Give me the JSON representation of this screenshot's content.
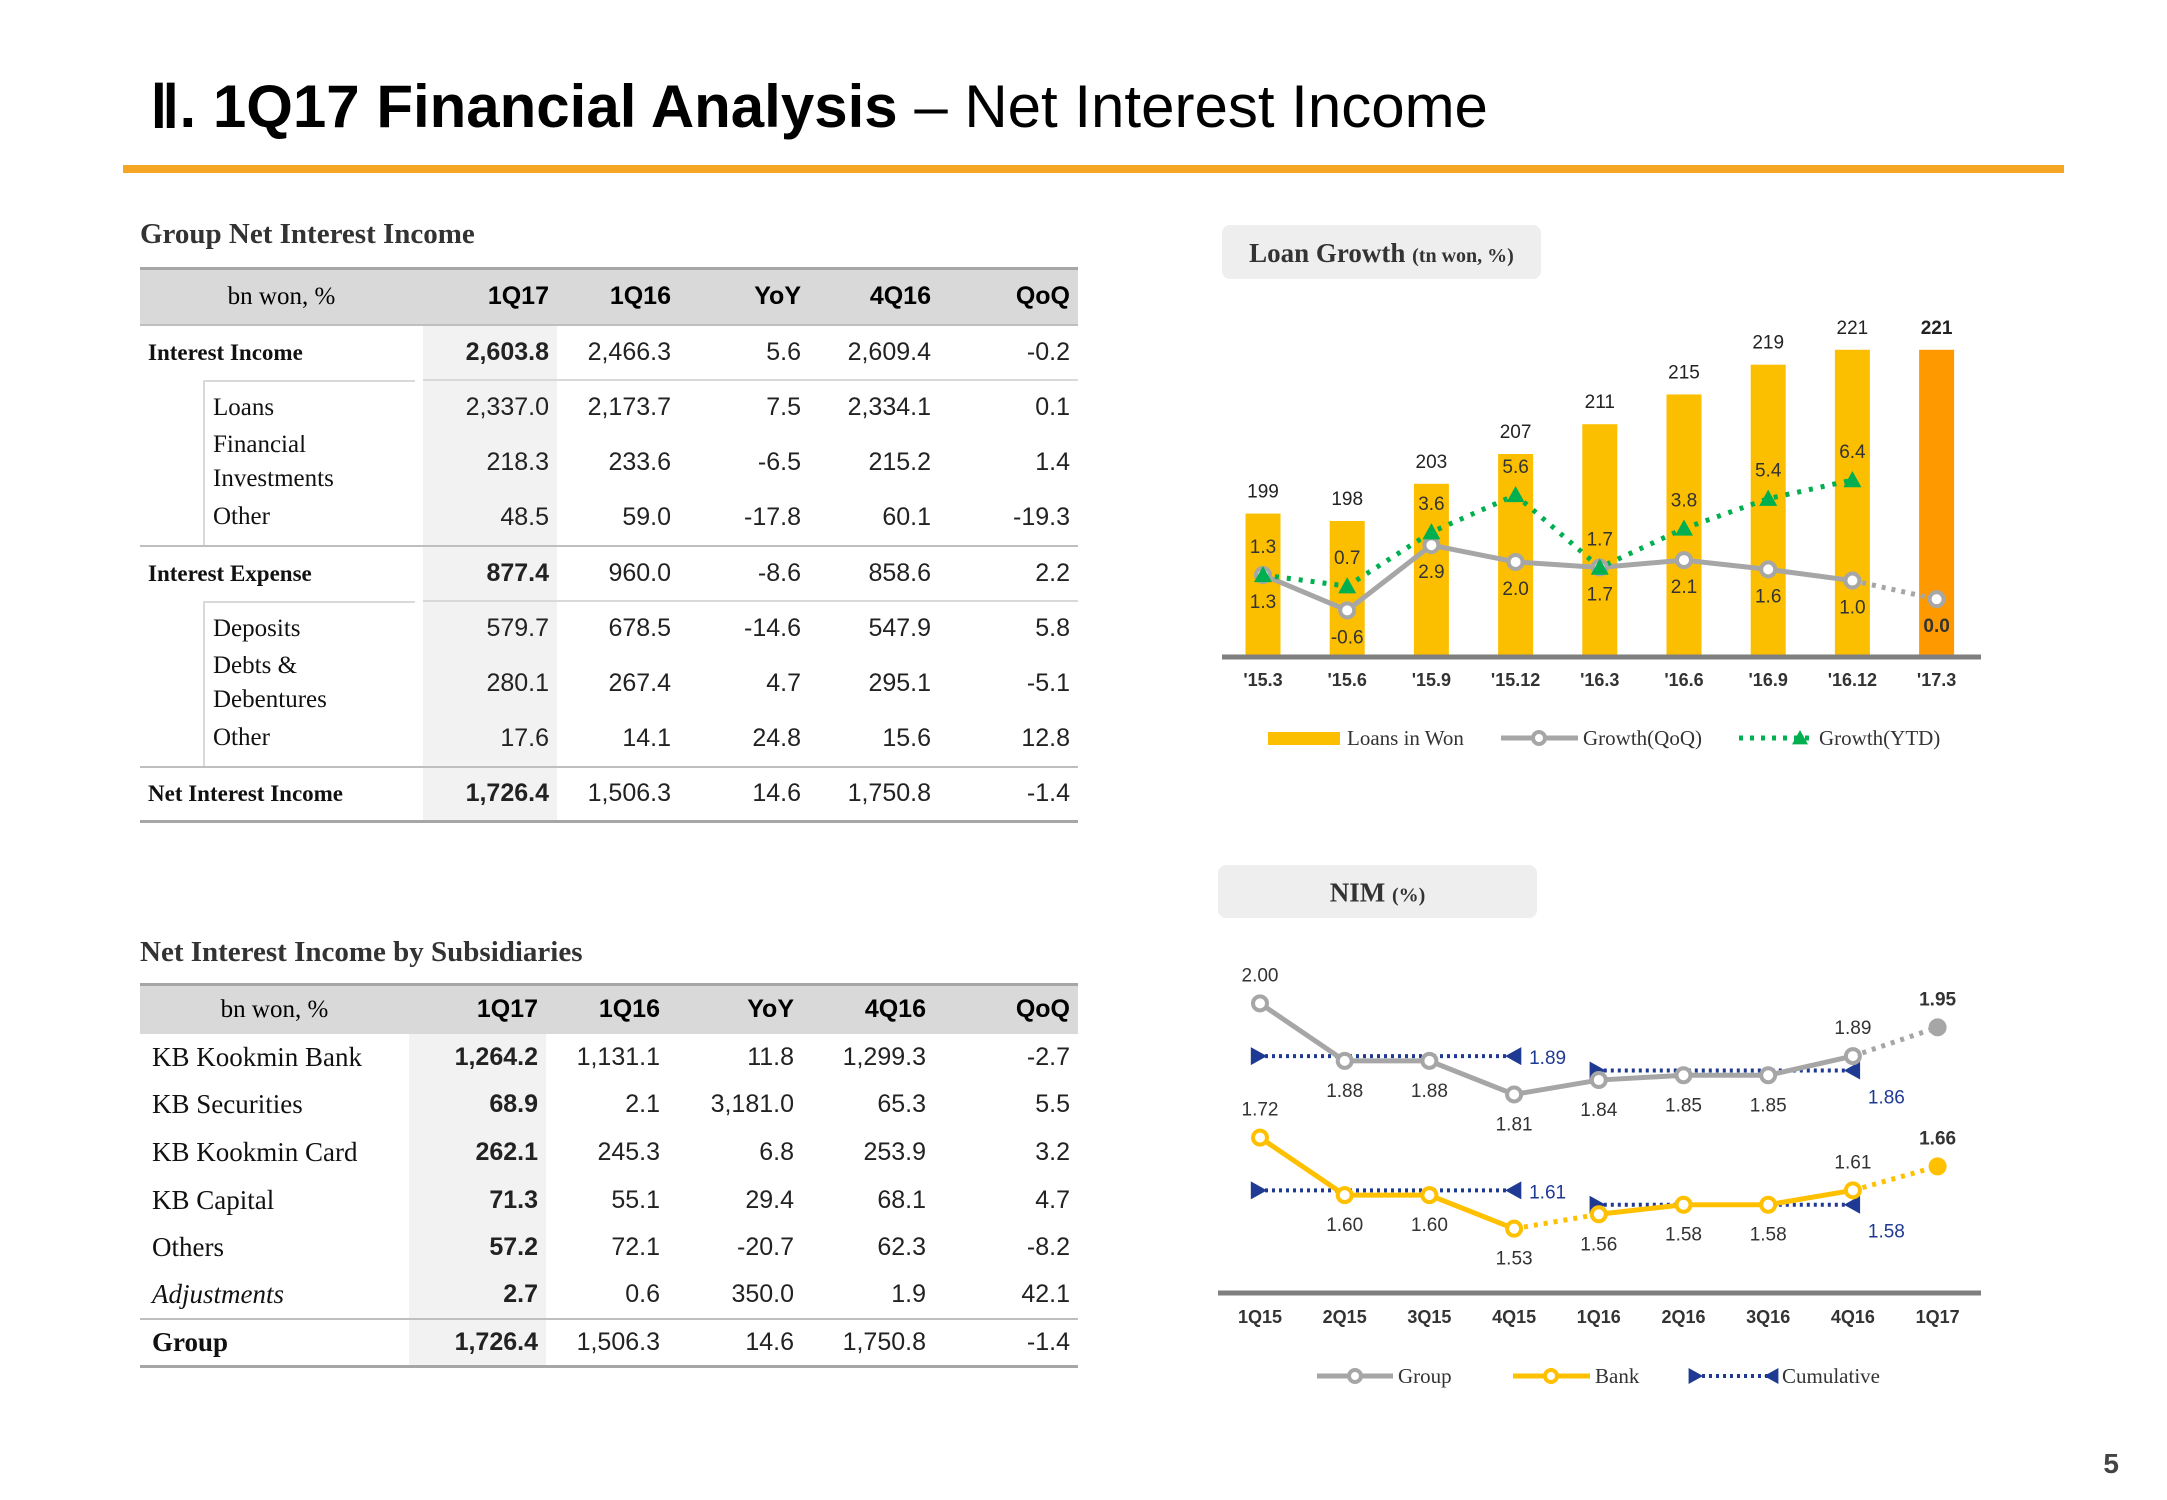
{
  "header": {
    "title_bold": "Ⅱ. 1Q17 Financial Analysis",
    "title_rest": "– Net Interest Income",
    "page_number": "5"
  },
  "table1": {
    "title": "Group Net Interest Income",
    "columns": [
      "bn won, %",
      "1Q17",
      "1Q16",
      "YoY",
      "4Q16",
      "QoQ"
    ],
    "sections": [
      {
        "label": "Interest Income",
        "values": [
          "2,603.8",
          "2,466.3",
          "5.6",
          "2,609.4",
          "-0.2"
        ],
        "items": [
          {
            "label": "Loans",
            "values": [
              "2,337.0",
              "2,173.7",
              "7.5",
              "2,334.1",
              "0.1"
            ]
          },
          {
            "label": "Financial Investments",
            "values": [
              "218.3",
              "233.6",
              "-6.5",
              "215.2",
              "1.4"
            ]
          },
          {
            "label": "Other",
            "values": [
              "48.5",
              "59.0",
              "-17.8",
              "60.1",
              "-19.3"
            ]
          }
        ]
      },
      {
        "label": "Interest Expense",
        "values": [
          "877.4",
          "960.0",
          "-8.6",
          "858.6",
          "2.2"
        ],
        "items": [
          {
            "label": "Deposits",
            "values": [
              "579.7",
              "678.5",
              "-14.6",
              "547.9",
              "5.8"
            ]
          },
          {
            "label": "Debts & Debentures",
            "values": [
              "280.1",
              "267.4",
              "4.7",
              "295.1",
              "-5.1"
            ]
          },
          {
            "label": "Other",
            "values": [
              "17.6",
              "14.1",
              "24.8",
              "15.6",
              "12.8"
            ]
          }
        ]
      },
      {
        "label": "Net Interest Income",
        "values": [
          "1,726.4",
          "1,506.3",
          "14.6",
          "1,750.8",
          "-1.4"
        ],
        "items": []
      }
    ]
  },
  "table2": {
    "title": "Net Interest Income by Subsidiaries",
    "columns": [
      "bn won, %",
      "1Q17",
      "1Q16",
      "YoY",
      "4Q16",
      "QoQ"
    ],
    "rows": [
      {
        "label": "KB Kookmin Bank",
        "values": [
          "1,264.2",
          "1,131.1",
          "11.8",
          "1,299.3",
          "-2.7"
        ]
      },
      {
        "label": "KB Securities",
        "values": [
          "68.9",
          "2.1",
          "3,181.0",
          "65.3",
          "5.5"
        ]
      },
      {
        "label": "KB Kookmin Card",
        "values": [
          "262.1",
          "245.3",
          "6.8",
          "253.9",
          "3.2"
        ]
      },
      {
        "label": "KB Capital",
        "values": [
          "71.3",
          "55.1",
          "29.4",
          "68.1",
          "4.7"
        ]
      },
      {
        "label": "Others",
        "values": [
          "57.2",
          "72.1",
          "-20.7",
          "62.3",
          "-8.2"
        ]
      },
      {
        "label": "Adjustments",
        "values": [
          "2.7",
          "0.6",
          "350.0",
          "1.9",
          "42.1"
        ]
      },
      {
        "label": "Group",
        "values": [
          "1,726.4",
          "1,506.3",
          "14.6",
          "1,750.8",
          "-1.4"
        ]
      }
    ]
  },
  "loan_chart": {
    "type": "bar",
    "title": "Loan Growth",
    "unit": "(tn won, %)",
    "categories": [
      "'15.3",
      "'15.6",
      "'15.9",
      "'15.12",
      "'16.3",
      "'16.6",
      "'16.9",
      "'16.12",
      "'17.3"
    ],
    "ylim": [
      180,
      225
    ],
    "y2lim": [
      -3,
      15
    ],
    "highlight_color": "#ff9900",
    "series": [
      {
        "name": "Loans in Won",
        "color": "#fbbf00",
        "values": [
          199,
          198,
          203,
          207,
          211,
          215,
          219,
          221,
          221
        ]
      },
      {
        "name": "Growth(QoQ)",
        "color": "#a6a6a6",
        "axis": "y2",
        "values": [
          1.3,
          -0.6,
          2.9,
          2.0,
          1.7,
          2.1,
          1.6,
          1.0,
          0.0
        ],
        "value_labels": [
          "1.3",
          "-0.6",
          "2.9",
          "2.0",
          "1.7",
          "2.1",
          "1.6",
          "1.0",
          "0.0"
        ]
      },
      {
        "name": "Growth(YTD)",
        "color": "#00b050",
        "axis": "y2",
        "values": [
          1.3,
          0.7,
          3.6,
          5.6,
          1.7,
          3.8,
          5.4,
          6.4,
          null
        ]
      }
    ]
  },
  "nim_chart": {
    "type": "line",
    "title": "NIM",
    "unit": "(%)",
    "categories": [
      "1Q15",
      "2Q15",
      "3Q15",
      "4Q15",
      "1Q16",
      "2Q16",
      "3Q16",
      "4Q16",
      "1Q17"
    ],
    "ylim": [
      1.4,
      2.08
    ],
    "series": [
      {
        "name": "Group",
        "color": "#a6a6a6",
        "values": [
          2.0,
          1.88,
          1.88,
          1.81,
          1.84,
          1.85,
          1.85,
          1.89,
          1.95
        ],
        "value_labels": [
          "2.00",
          "1.88",
          "1.88",
          "1.81",
          "1.84",
          "1.85",
          "1.85",
          "1.89",
          "1.95"
        ]
      },
      {
        "name": "Bank",
        "color": "#ffc000",
        "values": [
          1.72,
          1.6,
          1.6,
          1.53,
          1.56,
          1.58,
          1.58,
          1.61,
          1.66
        ],
        "value_labels": [
          "1.72",
          "1.60",
          "1.60",
          "1.53",
          "1.56",
          "1.58",
          "1.58",
          "1.61",
          "1.66"
        ]
      }
    ],
    "cumulative": {
      "name": "Cumulative",
      "color": "#1f3a93",
      "group": [
        null,
        null,
        null,
        1.89,
        null,
        null,
        null,
        1.86,
        null
      ],
      "bank": [
        null,
        null,
        null,
        1.61,
        null,
        null,
        null,
        1.58,
        null
      ]
    }
  }
}
